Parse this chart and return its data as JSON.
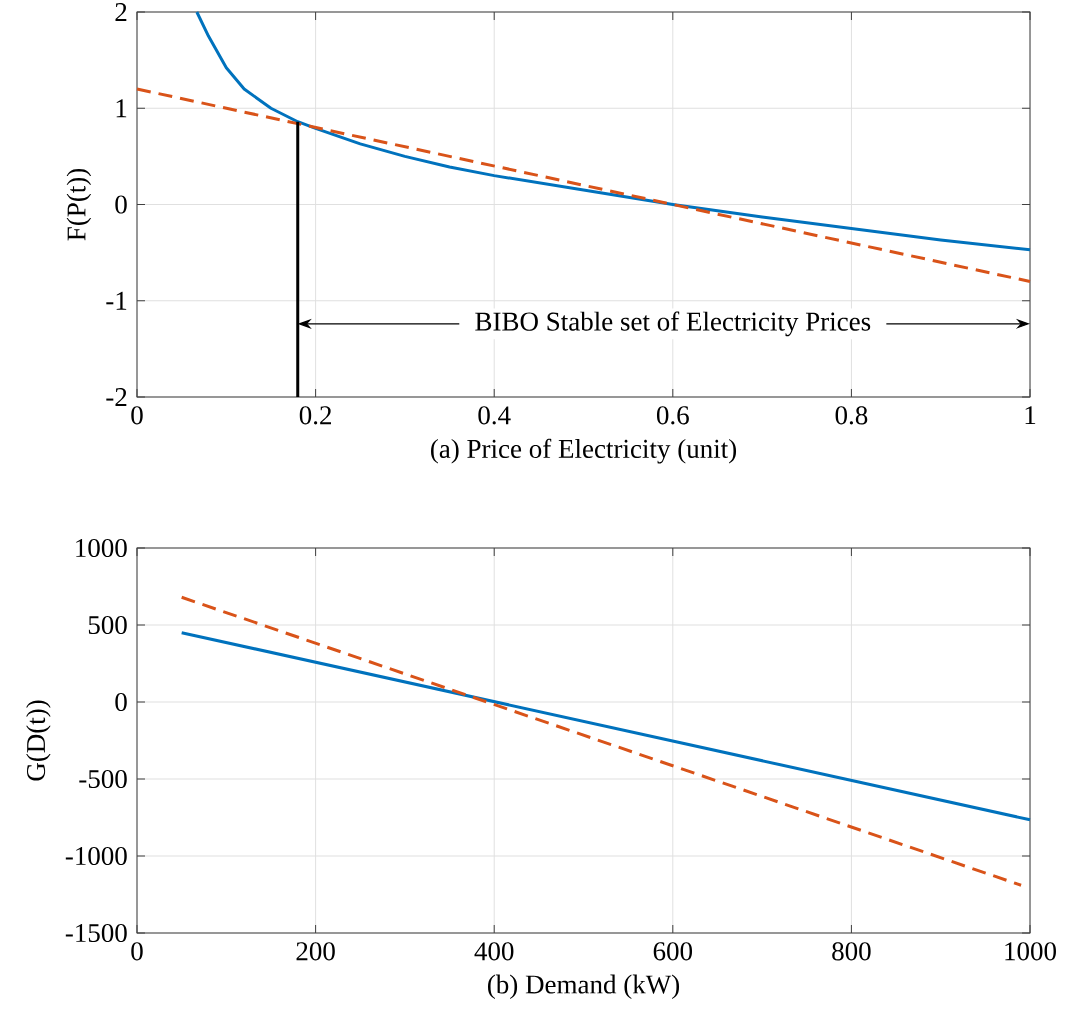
{
  "chart_data": [
    {
      "type": "line",
      "xlabel": "(a) Price of Electricity (unit)",
      "ylabel": "F(P(t))",
      "xlim": [
        0,
        1
      ],
      "ylim": [
        -2,
        2
      ],
      "xticks": [
        0,
        0.2,
        0.4,
        0.6,
        0.8,
        1
      ],
      "yticks": [
        -2,
        -1,
        0,
        1,
        2
      ],
      "grid": true,
      "annotations": [
        "BIBO Stable set of Electricity Prices"
      ],
      "series": [
        {
          "color": "#0072bd",
          "line_style": "solid",
          "x": [
            0.067,
            0.08,
            0.1,
            0.12,
            0.15,
            0.18,
            0.2,
            0.25,
            0.3,
            0.35,
            0.4,
            0.5,
            0.6,
            0.7,
            0.8,
            0.9,
            1.0
          ],
          "values": [
            2,
            1.75,
            1.42,
            1.2,
            1.0,
            0.86,
            0.79,
            0.63,
            0.5,
            0.39,
            0.3,
            0.15,
            0.0,
            -0.13,
            -0.25,
            -0.37,
            -0.47
          ]
        },
        {
          "color": "#d95319",
          "line_style": "dashed",
          "x": [
            0,
            1
          ],
          "values": [
            1.2,
            -0.8
          ]
        },
        {
          "color": "#000000",
          "line_style": "solid",
          "x": [
            0.18,
            0.18
          ],
          "values": [
            -2,
            0.86
          ]
        }
      ]
    },
    {
      "type": "line",
      "xlabel": "(b) Demand (kW)",
      "ylabel": "G(D(t))",
      "xlim": [
        0,
        1000
      ],
      "ylim": [
        -1500,
        1000
      ],
      "xticks": [
        0,
        200,
        400,
        600,
        800,
        1000
      ],
      "yticks": [
        -1500,
        -1000,
        -500,
        0,
        500,
        1000
      ],
      "grid": true,
      "series": [
        {
          "color": "#0072bd",
          "line_style": "solid",
          "x": [
            50,
            1000
          ],
          "values": [
            450,
            -765
          ]
        },
        {
          "color": "#d95319",
          "line_style": "dashed",
          "x": [
            50,
            990
          ],
          "values": [
            680,
            -1190
          ]
        }
      ]
    }
  ]
}
